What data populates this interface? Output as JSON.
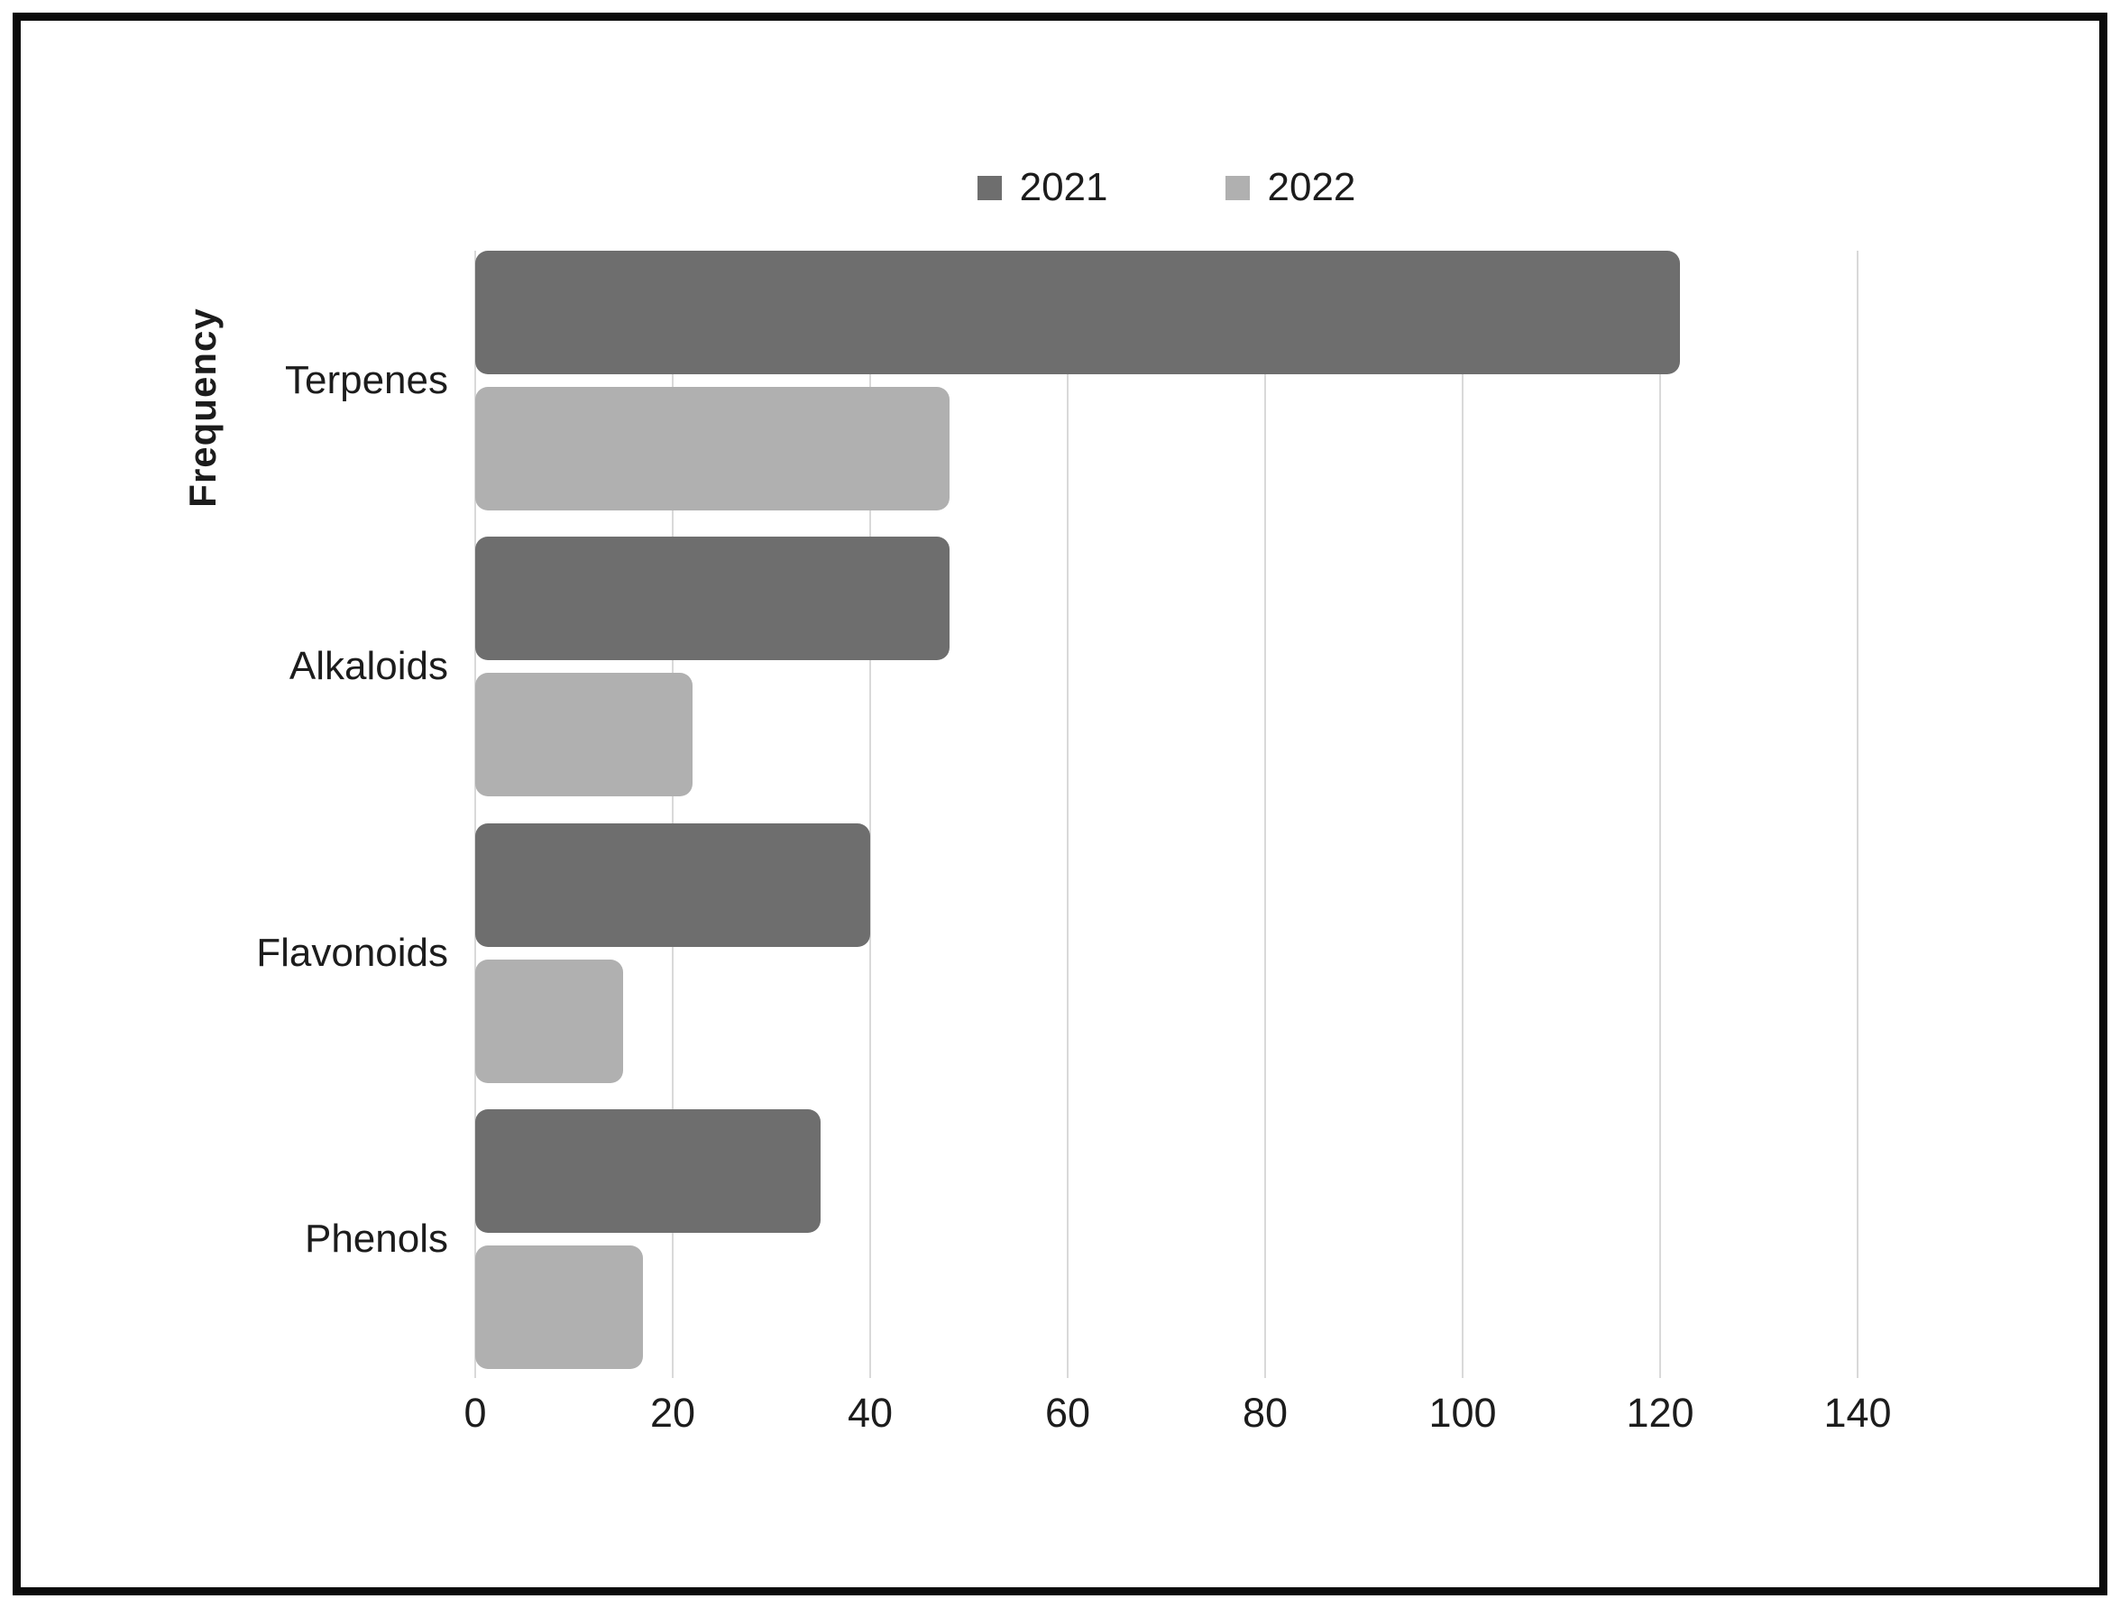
{
  "figure": {
    "background": "#ffffff",
    "border_color": "#0b0b0b",
    "gridline_color": "#d9d9d9",
    "text_color": "#1c1c1c"
  },
  "chart_data": {
    "type": "bar",
    "orientation": "horizontal",
    "title": "",
    "xlabel": "",
    "ylabel": "Frequency",
    "categories": [
      "Terpenes",
      "Alkaloids",
      "Flavonoids",
      "Phenols"
    ],
    "series": [
      {
        "name": "2021",
        "color": "#6e6e6e",
        "values": [
          122,
          48,
          40,
          35
        ]
      },
      {
        "name": "2022",
        "color": "#b0b0b0",
        "values": [
          48,
          22,
          15,
          17
        ]
      }
    ],
    "x_axis": {
      "min": 0,
      "max": 140,
      "tick_step": 20,
      "ticks": [
        0,
        20,
        40,
        60,
        80,
        100,
        120,
        140
      ]
    },
    "grid": true,
    "legend_position": "top-center"
  }
}
